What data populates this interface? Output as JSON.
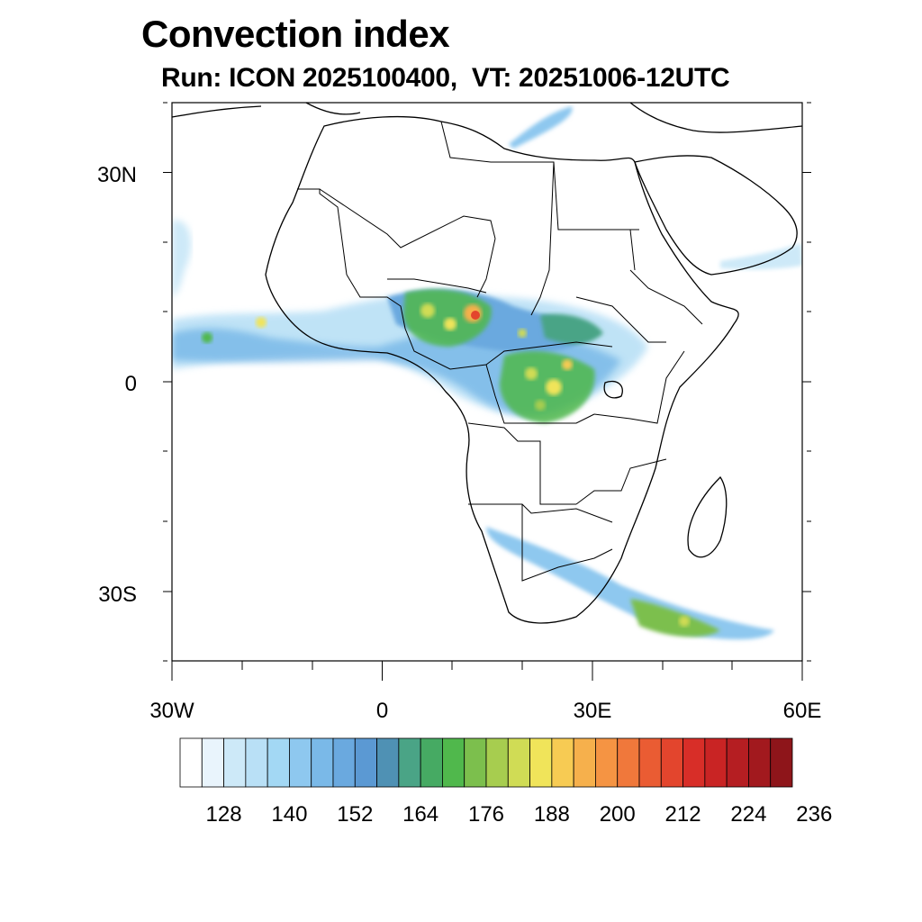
{
  "title": "Convection index",
  "subtitle": "Run: ICON 2025100400,  VT: 20251006-12UTC",
  "lat_labels": [
    "30N",
    "0",
    "30S"
  ],
  "lon_labels": [
    "30W",
    "0",
    "30E",
    "60E"
  ],
  "colorbar": {
    "colors": [
      "#ffffff",
      "#e9f4fc",
      "#cde9f8",
      "#b9e0f6",
      "#a3d8f4",
      "#8ec8ef",
      "#7ab9e8",
      "#6aa9df",
      "#5b99d3",
      "#4f91b4",
      "#4aa486",
      "#46aa63",
      "#50b84c",
      "#7cbf4d",
      "#a7cd4f",
      "#d0dc55",
      "#f0e45a",
      "#f7cb53",
      "#f6b04c",
      "#f59443",
      "#f0783b",
      "#ea5c33",
      "#e3452d",
      "#d82e28",
      "#c92424",
      "#b51e22",
      "#a2191e",
      "#8e151a"
    ],
    "tick_labels": [
      "128",
      "140",
      "152",
      "164",
      "176",
      "188",
      "200",
      "212",
      "224",
      "236"
    ]
  }
}
